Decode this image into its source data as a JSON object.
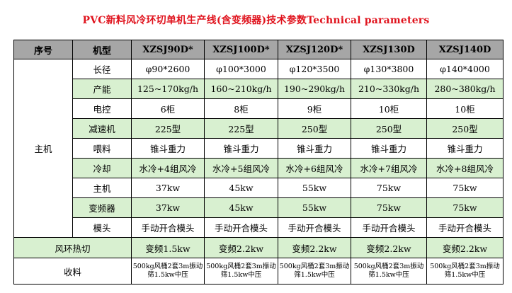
{
  "title": "PVC新料风冷环切单机生产线(含变频器)技术参数Technical parameters",
  "header": {
    "col_index": "序号",
    "col_model": "机型",
    "models": [
      "XZSJ90D*",
      "XZSJ100D*",
      "XZSJ120D*",
      "XZSJ130D",
      "XZSJ140D"
    ]
  },
  "main_group_label": "主机",
  "rows": [
    {
      "label": "长径",
      "values": [
        "φ90*2600",
        "φ100*3000",
        "φ120*3500",
        "φ130*3800",
        "φ140*4000"
      ],
      "green": false
    },
    {
      "label": "产能",
      "values": [
        "125~170kg/h",
        "160~210kg/h",
        "190~290kg/h",
        "210~330kg/h",
        "280~380kg/h"
      ],
      "green": true
    },
    {
      "label": "电控",
      "values": [
        "6柜",
        "8柜",
        "9柜",
        "10柜",
        "10柜"
      ],
      "green": false
    },
    {
      "label": "减速机",
      "values": [
        "225型",
        "225型",
        "250型",
        "250型",
        "250型"
      ],
      "green": true
    },
    {
      "label": "喂料",
      "values": [
        "锥斗重力",
        "锥斗重力",
        "锥斗重力",
        "锥斗重力",
        "锥斗重力"
      ],
      "green": false
    },
    {
      "label": "冷却",
      "values": [
        "水冷+4组风冷",
        "水冷+5组风冷",
        "水冷+6组风冷",
        "水冷+7组风冷",
        "水冷+8组风冷"
      ],
      "green": true
    },
    {
      "label": "主机",
      "values": [
        "37kw",
        "45kw",
        "55kw",
        "75kw",
        "75kw"
      ],
      "green": false
    },
    {
      "label": "变频器",
      "values": [
        "37kw",
        "45kw",
        "55kw",
        "75kw",
        "75kw"
      ],
      "green": true
    },
    {
      "label": "模头",
      "values": [
        "手动开合模头",
        "手动开合模头",
        "手动开合模头",
        "手动开合模头",
        "手动开合模头"
      ],
      "green": false
    }
  ],
  "cut_row": {
    "label": "风环热切",
    "values": [
      "变频1.5kw",
      "变频2.2kw",
      "变频2.2kw",
      "变频2.2kw",
      "变频2.2kw"
    ]
  },
  "collect_row": {
    "label": "收料",
    "values": [
      "500kg风桶2套3m振动筛1.5kw中压",
      "500kg风桶2套3m振动筛1.5kw中压",
      "500kg风桶2套3m振动筛1.5kw中压",
      "500kg风桶2套3m振动筛1.5kw中压",
      "500kg风桶2套3m振动筛1.5kw中压"
    ]
  }
}
